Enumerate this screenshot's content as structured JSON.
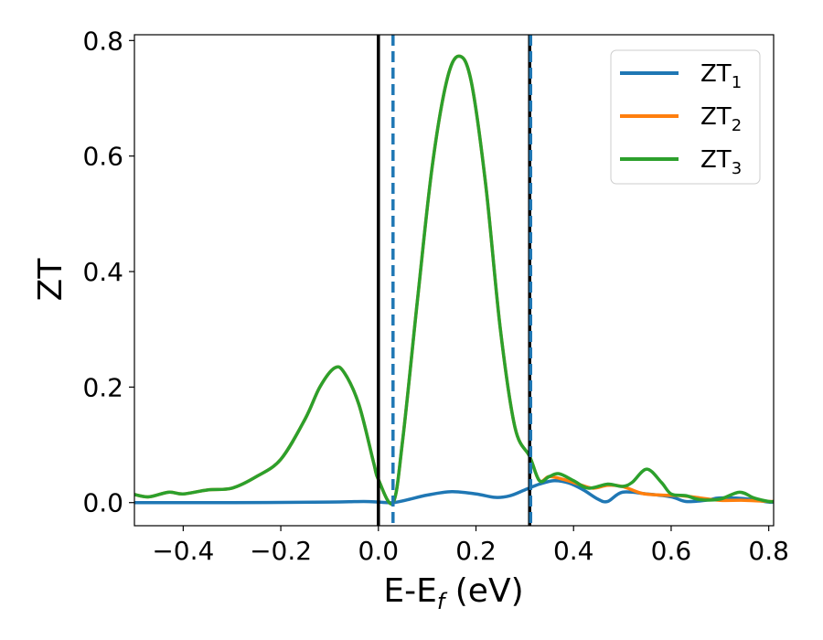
{
  "chart_data": {
    "type": "line",
    "title": "",
    "xlabel": {
      "main": "E-E",
      "sub": "f",
      "suffix": " (eV)"
    },
    "ylabel": "ZT",
    "xlim": [
      -0.5,
      0.81
    ],
    "ylim": [
      -0.04,
      0.81
    ],
    "x_ticks": [
      -0.4,
      -0.2,
      0.0,
      0.2,
      0.4,
      0.6,
      0.8
    ],
    "x_tick_labels": [
      "−0.4",
      "−0.2",
      "0.0",
      "0.2",
      "0.4",
      "0.6",
      "0.8"
    ],
    "y_ticks": [
      0.0,
      0.2,
      0.4,
      0.6,
      0.8
    ],
    "y_tick_labels": [
      "0.0",
      "0.2",
      "0.4",
      "0.6",
      "0.8"
    ],
    "grid": false,
    "legend_position": "top-right",
    "vertical_lines": [
      {
        "x": 0.0,
        "style": "solid",
        "color": "#000000"
      },
      {
        "x": 0.03,
        "style": "dashed",
        "color": "#1f77b4"
      },
      {
        "x": 0.31,
        "style": "solid",
        "color": "#000000"
      },
      {
        "x": 0.312,
        "style": "dashed",
        "color": "#1f77b4"
      }
    ],
    "series": [
      {
        "name": "ZT",
        "name_sub": "1",
        "color": "#1f77b4",
        "points": [
          [
            -0.5,
            0.0
          ],
          [
            -0.3,
            0.0
          ],
          [
            -0.1,
            0.001
          ],
          [
            -0.03,
            0.002
          ],
          [
            0.0,
            0.001
          ],
          [
            0.03,
            0.0
          ],
          [
            0.06,
            0.005
          ],
          [
            0.1,
            0.013
          ],
          [
            0.15,
            0.019
          ],
          [
            0.2,
            0.015
          ],
          [
            0.24,
            0.009
          ],
          [
            0.27,
            0.012
          ],
          [
            0.3,
            0.022
          ],
          [
            0.33,
            0.032
          ],
          [
            0.36,
            0.038
          ],
          [
            0.39,
            0.034
          ],
          [
            0.42,
            0.022
          ],
          [
            0.45,
            0.006
          ],
          [
            0.47,
            0.002
          ],
          [
            0.5,
            0.018
          ],
          [
            0.55,
            0.015
          ],
          [
            0.6,
            0.01
          ],
          [
            0.63,
            0.002
          ],
          [
            0.67,
            0.004
          ],
          [
            0.7,
            0.008
          ],
          [
            0.75,
            0.007
          ],
          [
            0.8,
            0.001
          ],
          [
            0.81,
            0.001
          ]
        ]
      },
      {
        "name": "ZT",
        "name_sub": "2",
        "color": "#ff7f0e",
        "points": [
          [
            -0.5,
            0.014
          ],
          [
            -0.47,
            0.01
          ],
          [
            -0.43,
            0.018
          ],
          [
            -0.4,
            0.015
          ],
          [
            -0.35,
            0.022
          ],
          [
            -0.3,
            0.025
          ],
          [
            -0.25,
            0.045
          ],
          [
            -0.2,
            0.075
          ],
          [
            -0.15,
            0.145
          ],
          [
            -0.12,
            0.2
          ],
          [
            -0.09,
            0.233
          ],
          [
            -0.07,
            0.225
          ],
          [
            -0.04,
            0.17
          ],
          [
            -0.01,
            0.07
          ],
          [
            0.0,
            0.04
          ],
          [
            0.03,
            0.0
          ],
          [
            0.05,
            0.11
          ],
          [
            0.08,
            0.35
          ],
          [
            0.11,
            0.58
          ],
          [
            0.14,
            0.73
          ],
          [
            0.165,
            0.773
          ],
          [
            0.19,
            0.73
          ],
          [
            0.22,
            0.55
          ],
          [
            0.25,
            0.3
          ],
          [
            0.28,
            0.13
          ],
          [
            0.31,
            0.08
          ],
          [
            0.33,
            0.038
          ],
          [
            0.35,
            0.045
          ],
          [
            0.38,
            0.04
          ],
          [
            0.41,
            0.032
          ],
          [
            0.44,
            0.025
          ],
          [
            0.47,
            0.03
          ],
          [
            0.5,
            0.028
          ],
          [
            0.54,
            0.016
          ],
          [
            0.58,
            0.013
          ],
          [
            0.62,
            0.012
          ],
          [
            0.66,
            0.008
          ],
          [
            0.7,
            0.004
          ],
          [
            0.75,
            0.004
          ],
          [
            0.8,
            0.002
          ],
          [
            0.81,
            0.002
          ]
        ]
      },
      {
        "name": "ZT",
        "name_sub": "3",
        "color": "#2ca02c",
        "points": [
          [
            -0.5,
            0.014
          ],
          [
            -0.47,
            0.01
          ],
          [
            -0.43,
            0.018
          ],
          [
            -0.4,
            0.015
          ],
          [
            -0.35,
            0.022
          ],
          [
            -0.3,
            0.025
          ],
          [
            -0.25,
            0.045
          ],
          [
            -0.2,
            0.075
          ],
          [
            -0.15,
            0.145
          ],
          [
            -0.12,
            0.2
          ],
          [
            -0.09,
            0.233
          ],
          [
            -0.07,
            0.225
          ],
          [
            -0.04,
            0.17
          ],
          [
            -0.01,
            0.07
          ],
          [
            0.0,
            0.04
          ],
          [
            0.03,
            0.0
          ],
          [
            0.05,
            0.11
          ],
          [
            0.08,
            0.35
          ],
          [
            0.11,
            0.58
          ],
          [
            0.14,
            0.73
          ],
          [
            0.165,
            0.773
          ],
          [
            0.19,
            0.73
          ],
          [
            0.22,
            0.55
          ],
          [
            0.25,
            0.3
          ],
          [
            0.28,
            0.13
          ],
          [
            0.31,
            0.08
          ],
          [
            0.33,
            0.038
          ],
          [
            0.35,
            0.045
          ],
          [
            0.37,
            0.05
          ],
          [
            0.4,
            0.038
          ],
          [
            0.43,
            0.025
          ],
          [
            0.47,
            0.032
          ],
          [
            0.5,
            0.028
          ],
          [
            0.52,
            0.035
          ],
          [
            0.55,
            0.058
          ],
          [
            0.58,
            0.035
          ],
          [
            0.6,
            0.015
          ],
          [
            0.63,
            0.012
          ],
          [
            0.66,
            0.005
          ],
          [
            0.7,
            0.006
          ],
          [
            0.74,
            0.018
          ],
          [
            0.77,
            0.008
          ],
          [
            0.8,
            0.002
          ],
          [
            0.81,
            0.002
          ]
        ]
      }
    ]
  }
}
